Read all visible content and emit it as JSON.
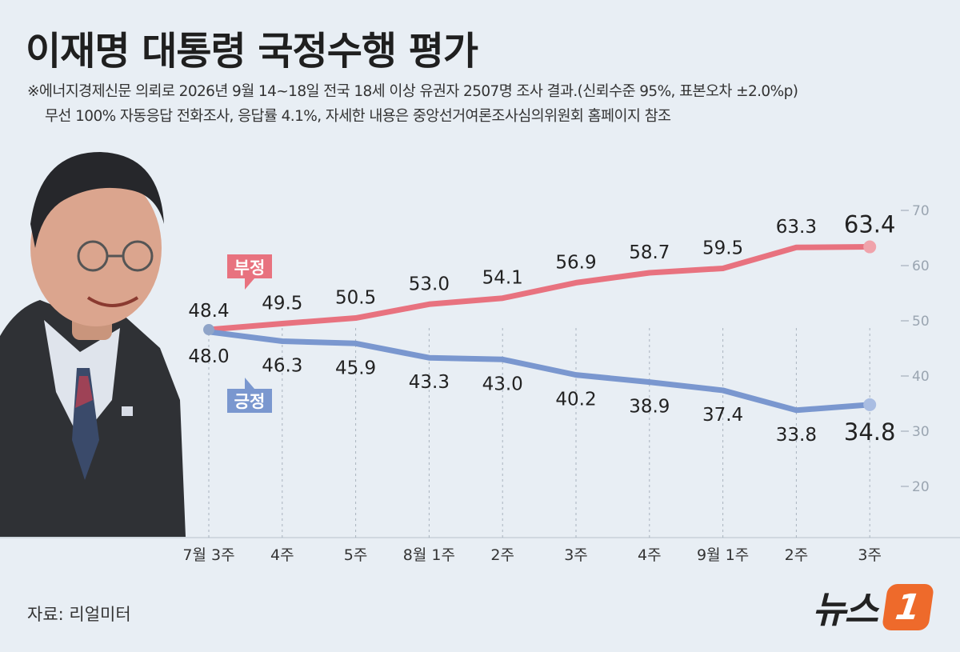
{
  "title": "이재명 대통령 국정수행 평가",
  "notes": [
    "※에너지경제신문 의뢰로 2026년 9월 14~18일 전국 18세 이상 유권자 2507명 조사 결과.(신뢰수준 95%, 표본오차 ±2.0%p)",
    "무선 100% 자동응답 전화조사, 응답률 4.1%, 자세한 내용은 중앙선거여론조사심의위원회 홈페이지 참조"
  ],
  "source": "자료: 리얼미터",
  "brand": {
    "text": "뉴스",
    "mark": "1"
  },
  "colors": {
    "negative": "#e8727f",
    "positive": "#7a97cf",
    "background": "#e8eef4"
  },
  "chart_data": {
    "type": "line",
    "categories": [
      "7월 3주",
      "4주",
      "5주",
      "8월 1주",
      "2주",
      "3주",
      "4주",
      "9월 1주",
      "2주",
      "3주"
    ],
    "series": [
      {
        "name": "부정",
        "values": [
          48.4,
          49.5,
          50.5,
          53.0,
          54.1,
          56.9,
          58.7,
          59.5,
          63.3,
          63.4
        ]
      },
      {
        "name": "긍정",
        "values": [
          48.0,
          46.3,
          45.9,
          43.3,
          43.0,
          40.2,
          38.9,
          37.4,
          33.8,
          34.8
        ]
      }
    ],
    "yticks": [
      20,
      30,
      40,
      50,
      60,
      70
    ],
    "ylim": [
      10,
      70
    ],
    "title": "",
    "xlabel": "",
    "ylabel": "",
    "grid": "vertical dashed",
    "legend": "inline callouts"
  }
}
